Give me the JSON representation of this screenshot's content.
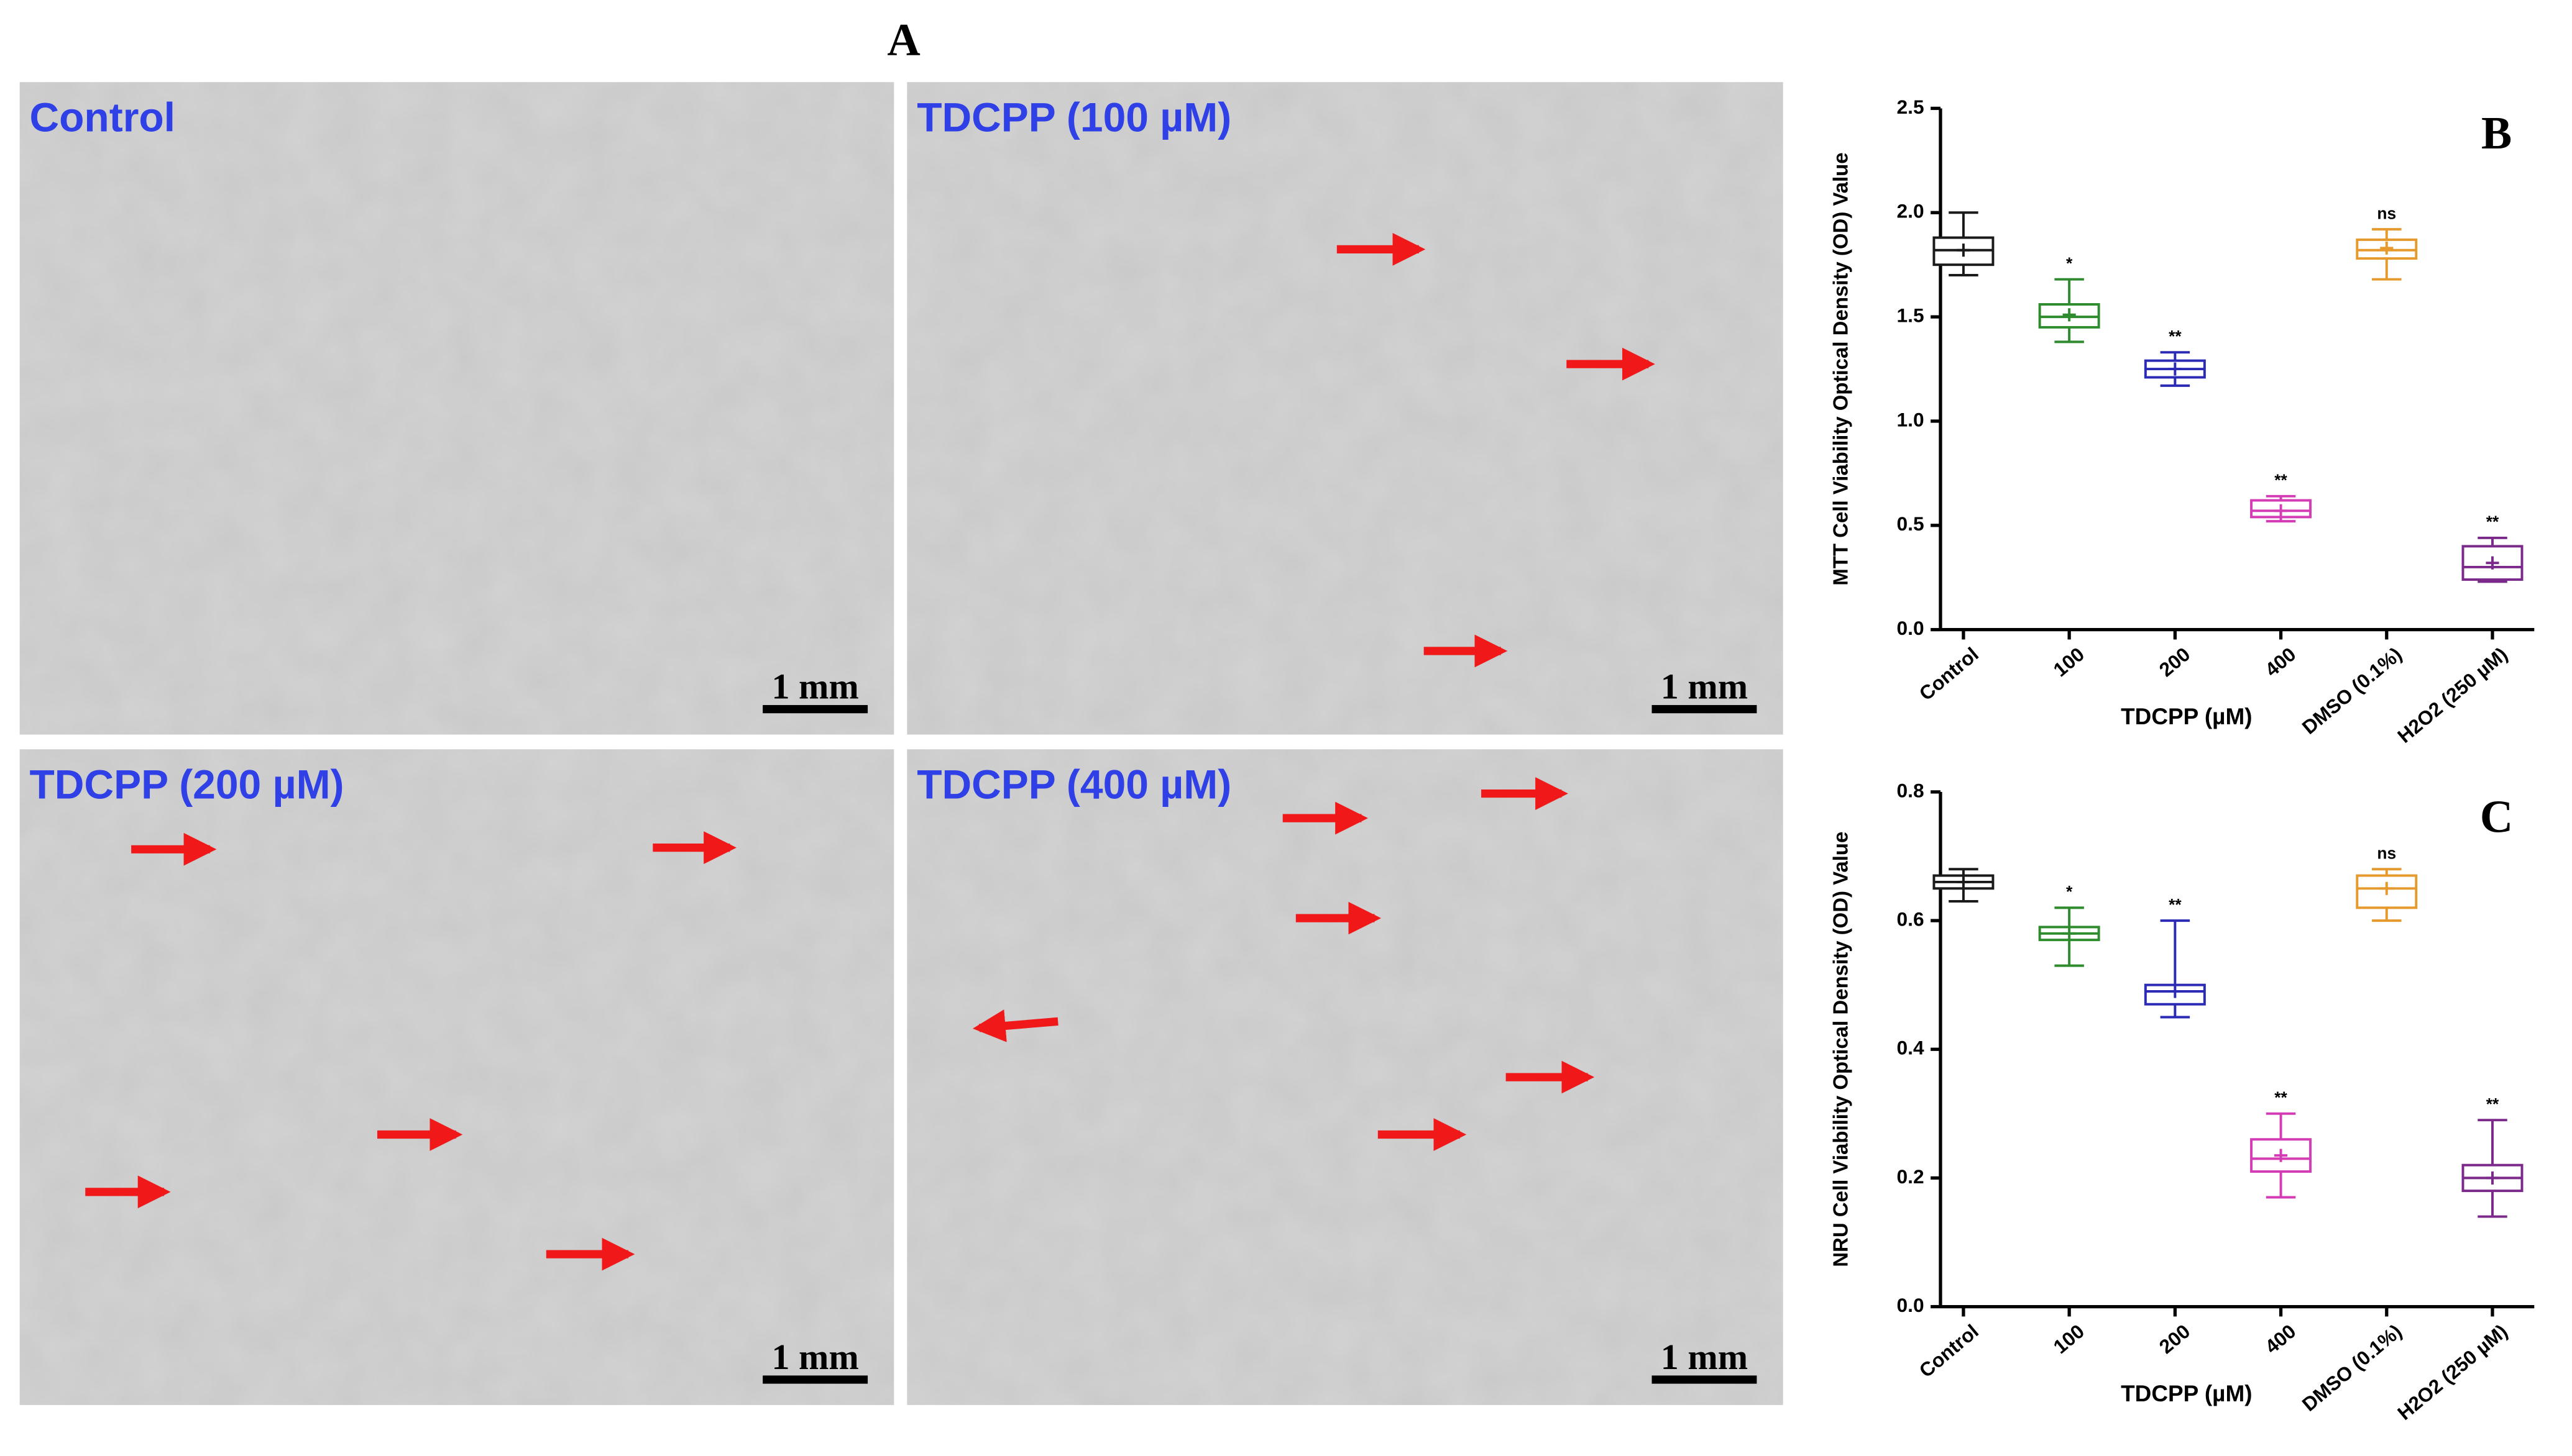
{
  "figure": {
    "label": "A",
    "panels": [
      {
        "label": "Control",
        "scale": "1 mm"
      },
      {
        "label": "TDCPP (100 µM)",
        "scale": "1 mm"
      },
      {
        "label": "TDCPP (200 µM)",
        "scale": "1 mm"
      },
      {
        "label": "TDCPP (400 µM)",
        "scale": "1 mm"
      }
    ]
  },
  "chart_data": [
    {
      "type": "box",
      "panel": "B",
      "ylabel": "MTT Cell Viability Optical Density (OD) Value",
      "xlabel": "TDCPP (µM)",
      "categories": [
        "Control",
        "100",
        "200",
        "400",
        "DMSO (0.1%)",
        "H2O2 (250 µM)"
      ],
      "colors": [
        "#1a1a1a",
        "#2e8b2e",
        "#2b2bb5",
        "#d43cb5",
        "#e69a2e",
        "#7b2a8c"
      ],
      "min": [
        1.7,
        1.38,
        1.17,
        0.52,
        1.68,
        0.23
      ],
      "q1": [
        1.75,
        1.45,
        1.21,
        0.54,
        1.78,
        0.24
      ],
      "median": [
        1.82,
        1.5,
        1.25,
        0.57,
        1.82,
        0.3
      ],
      "q3": [
        1.88,
        1.56,
        1.29,
        0.62,
        1.87,
        0.4
      ],
      "max": [
        2.0,
        1.68,
        1.33,
        0.64,
        1.92,
        0.44
      ],
      "mean": [
        1.82,
        1.51,
        1.25,
        0.57,
        1.83,
        0.32
      ],
      "annotations": [
        null,
        "*",
        "**",
        "**",
        "ns",
        "**"
      ],
      "ylim": [
        0,
        2.5
      ],
      "yticks": [
        {
          "value": 0,
          "label": "0.0"
        },
        0.5,
        {
          "value": 1,
          "label": "1.0"
        },
        1.5,
        {
          "value": 2,
          "label": "2.0"
        },
        2.5
      ]
    },
    {
      "type": "box",
      "panel": "C",
      "ylabel": "NRU Cell Viability Optical Density (OD) Value",
      "xlabel": "TDCPP (µM)",
      "categories": [
        "Control",
        "100",
        "200",
        "400",
        "DMSO (0.1%)",
        "H2O2 (250 µM)"
      ],
      "colors": [
        "#1a1a1a",
        "#2e8b2e",
        "#2b2bb5",
        "#d43cb5",
        "#e69a2e",
        "#7b2a8c"
      ],
      "min": [
        0.63,
        0.53,
        0.45,
        0.17,
        0.6,
        0.14
      ],
      "q1": [
        0.65,
        0.57,
        0.47,
        0.21,
        0.62,
        0.18
      ],
      "median": [
        0.66,
        0.58,
        0.49,
        0.23,
        0.65,
        0.2
      ],
      "q3": [
        0.67,
        0.59,
        0.5,
        0.26,
        0.67,
        0.22
      ],
      "max": [
        0.68,
        0.62,
        0.6,
        0.3,
        0.68,
        0.29
      ],
      "mean": [
        0.66,
        0.58,
        0.49,
        0.235,
        0.65,
        0.2
      ],
      "annotations": [
        null,
        "*",
        "**",
        "**",
        "ns",
        "**"
      ],
      "ylim": [
        0,
        0.8
      ],
      "yticks": [
        {
          "value": 0,
          "label": "0.0"
        },
        0.2,
        0.4,
        0.6,
        0.8
      ]
    }
  ]
}
